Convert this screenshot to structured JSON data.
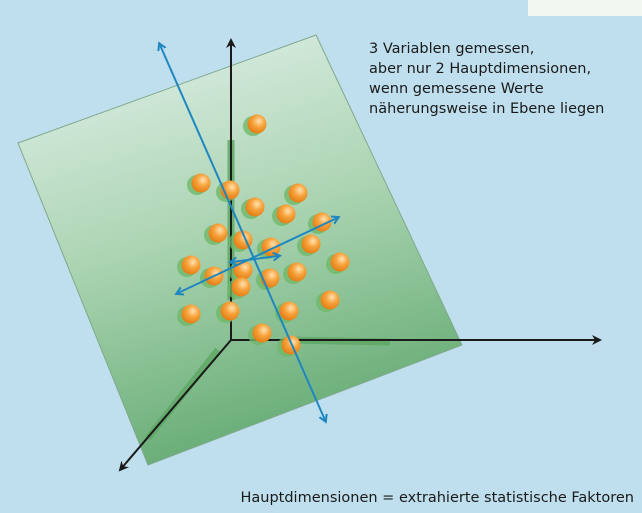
{
  "annotation": {
    "lines": [
      "3 Variablen gemessen,",
      "aber nur 2 Hauptdimensionen,",
      "wenn gemessene Werte",
      "näherungsweise in Ebene liegen"
    ]
  },
  "caption": "Hauptdimensionen = extrahierte statistische Faktoren"
}
